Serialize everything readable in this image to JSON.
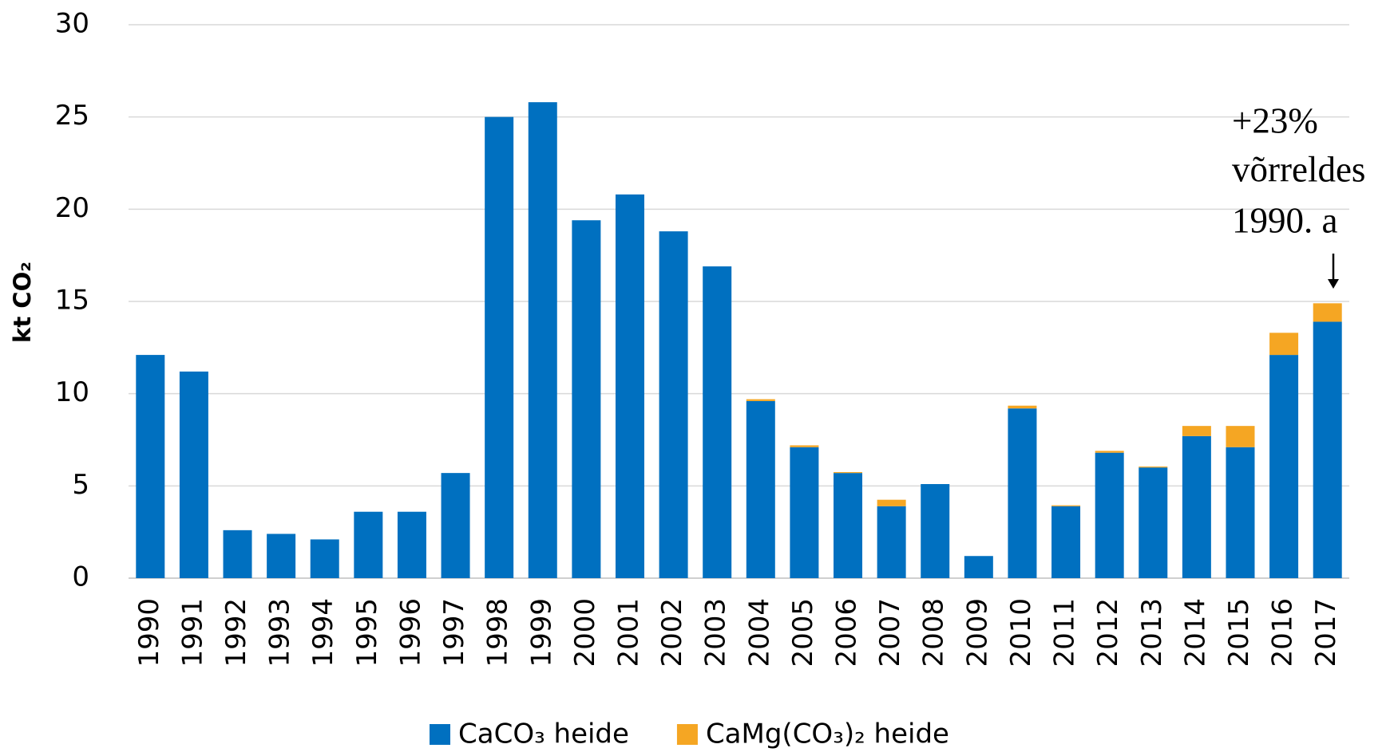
{
  "chart_data": {
    "type": "stacked_bar",
    "y_label": "kt CO₂",
    "categories": [
      "1990",
      "1991",
      "1992",
      "1993",
      "1994",
      "1995",
      "1996",
      "1997",
      "1998",
      "1999",
      "2000",
      "2001",
      "2002",
      "2003",
      "2004",
      "2005",
      "2006",
      "2007",
      "2008",
      "2009",
      "2010",
      "2011",
      "2012",
      "2013",
      "2014",
      "2015",
      "2016",
      "2017"
    ],
    "series": [
      {
        "name": "CaCO₃ heide",
        "color": "#0070c0",
        "values": [
          12.1,
          11.2,
          2.6,
          2.4,
          2.1,
          3.6,
          3.6,
          5.7,
          25.0,
          25.8,
          19.4,
          20.8,
          18.8,
          16.9,
          9.6,
          7.1,
          5.7,
          3.9,
          5.1,
          1.2,
          9.2,
          3.9,
          6.8,
          6.0,
          7.7,
          7.1,
          12.1,
          13.9
        ]
      },
      {
        "name": "CaMg(CO₃)₂ heide",
        "color": "#f5a623",
        "values": [
          0,
          0,
          0,
          0,
          0,
          0,
          0,
          0,
          0,
          0,
          0,
          0,
          0,
          0,
          0.1,
          0.1,
          0.05,
          0.35,
          0,
          0,
          0.15,
          0.05,
          0.1,
          0.05,
          0.55,
          1.15,
          1.2,
          1.0
        ]
      }
    ],
    "ylim": [
      0,
      30
    ],
    "yticks": [
      0,
      5,
      10,
      15,
      20,
      25,
      30
    ],
    "grid": true,
    "legend": "bottom",
    "annotations": [
      "+23%",
      "võrreldes",
      "1990. a"
    ]
  }
}
